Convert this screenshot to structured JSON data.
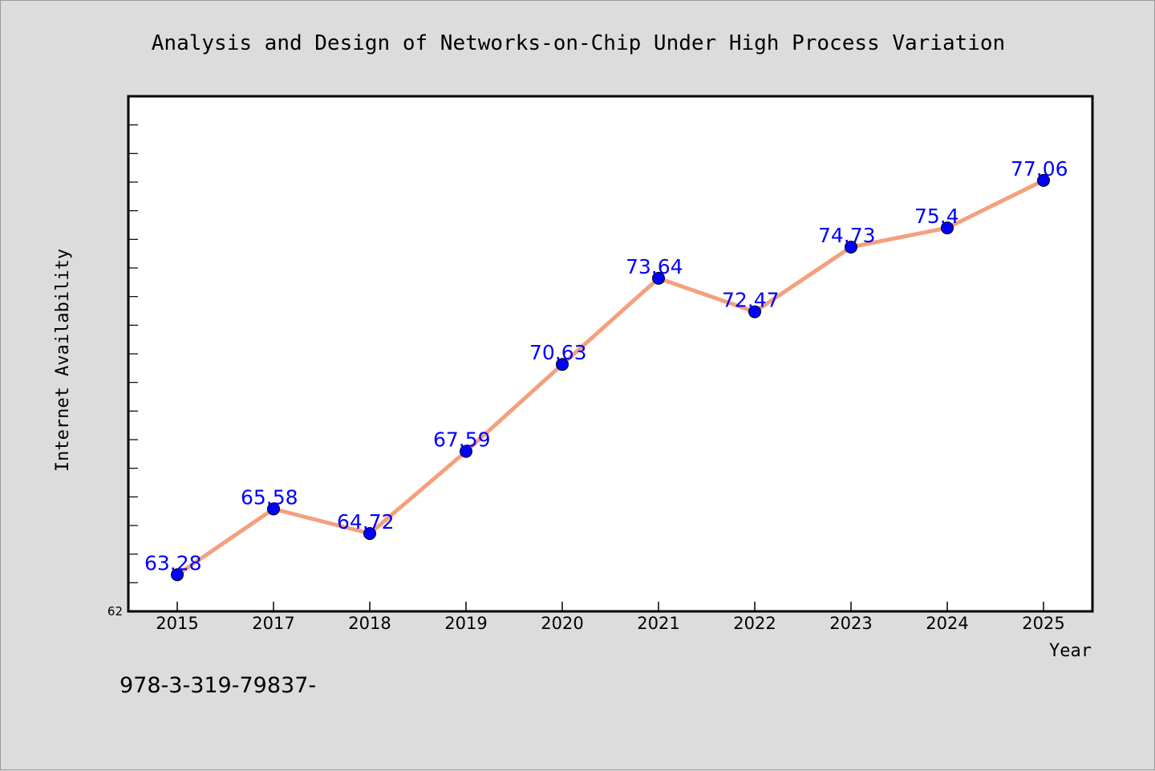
{
  "chart_data": {
    "type": "line",
    "title": "Analysis and Design of Networks-on-Chip Under High Process Variation",
    "xlabel": "Year",
    "ylabel": "Internet Availability",
    "categories": [
      "2015",
      "2017",
      "2018",
      "2019",
      "2020",
      "2021",
      "2022",
      "2023",
      "2024",
      "2025"
    ],
    "series": [
      {
        "values": [
          63.28,
          65.58,
          64.72,
          67.59,
          70.63,
          73.64,
          72.47,
          74.73,
          75.4,
          77.06
        ],
        "labels": [
          "63.28",
          "65.58",
          "64.72",
          "67.59",
          "70.63",
          "73.64",
          "72.47",
          "74.73",
          "75.4",
          "77.06"
        ],
        "line_color": "#f4a07e",
        "marker_color": "#0000ff"
      }
    ],
    "ylim": [
      62,
      80
    ],
    "y_tick_labels": [
      "62"
    ],
    "grid": false,
    "legend": "none"
  },
  "footer": {
    "text": "978-3-319-79837-"
  }
}
